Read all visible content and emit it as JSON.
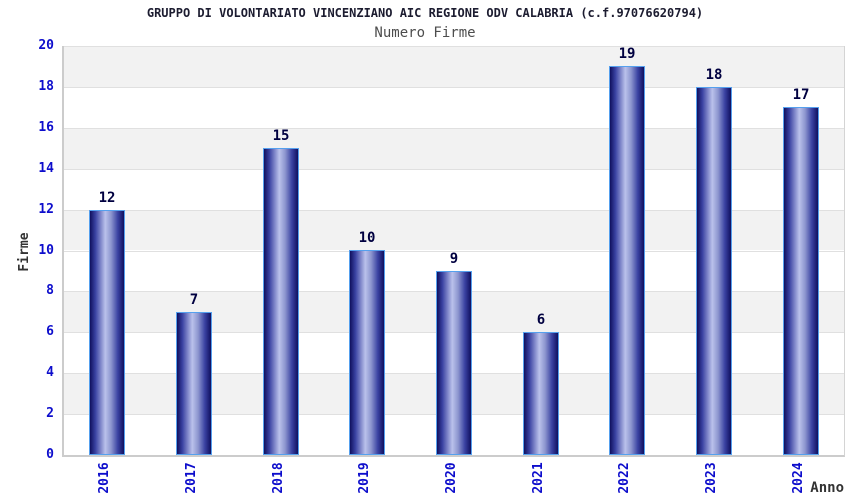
{
  "chart_data": {
    "type": "bar",
    "title": "GRUPPO DI VOLONTARIATO VINCENZIANO AIC REGIONE ODV CALABRIA (c.f.97076620794)",
    "subtitle": "Numero Firme",
    "xlabel": "Anno",
    "ylabel": "Firme",
    "categories": [
      "2016",
      "2017",
      "2018",
      "2019",
      "2020",
      "2021",
      "2022",
      "2023",
      "2024"
    ],
    "values": [
      12,
      7,
      15,
      10,
      9,
      6,
      19,
      18,
      17
    ],
    "ylim": [
      0,
      20
    ],
    "ytick_step": 2,
    "yticks": [
      0,
      2,
      4,
      6,
      8,
      10,
      12,
      14,
      16,
      18,
      20
    ],
    "legend": "none",
    "grid": "horizontal-bands-alternating",
    "colors": {
      "title_text": "#1c1c30",
      "subtitle_text": "#4d4d4d",
      "axis_title_text": "#333333",
      "tick_label_blue": "#0d0dcc",
      "value_label": "#000040",
      "band_gray": "#f2f2f2",
      "band_white": "#ffffff",
      "grid_line": "#e0e0e0",
      "axis_line": "#cccccc",
      "bar_edge_dark": "#10105e",
      "bar_mid": "#3a42a2",
      "bar_highlight": "#bac1eb",
      "bar_border": "#55a0ee"
    }
  }
}
